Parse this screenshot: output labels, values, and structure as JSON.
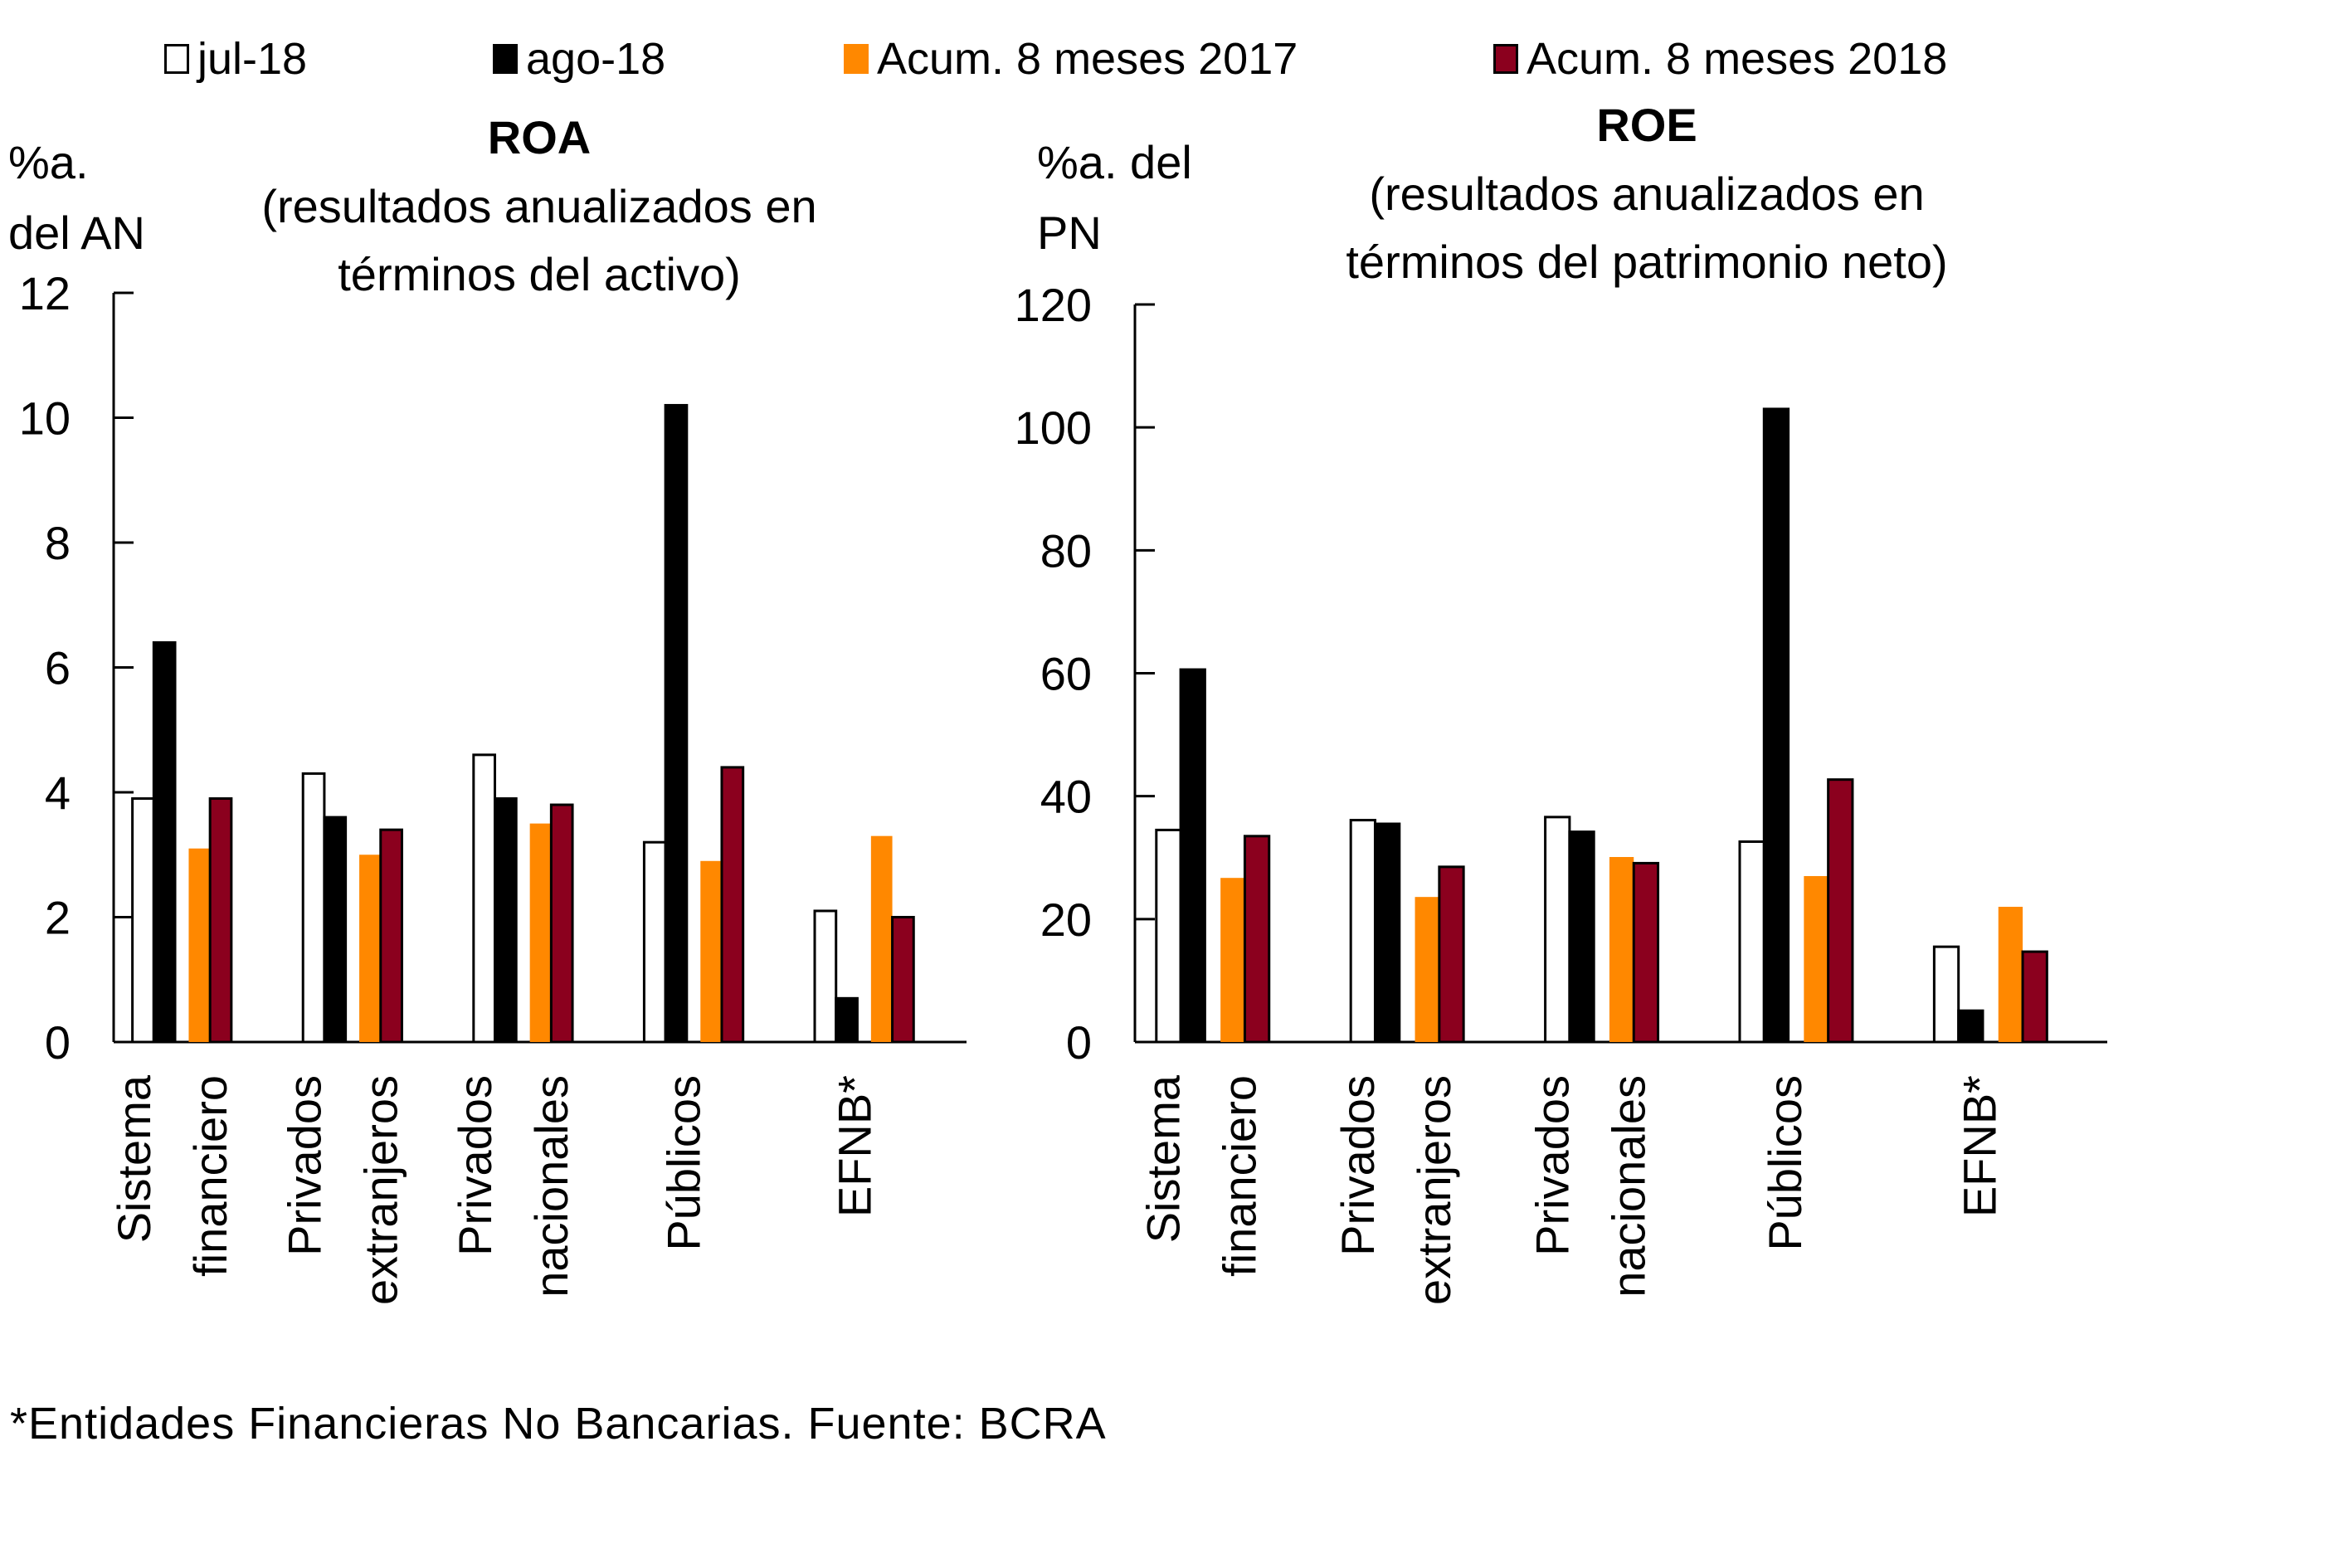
{
  "legend": [
    {
      "label": "jul-18",
      "color": "#ffffff",
      "border": "#000000"
    },
    {
      "label": "ago-18",
      "color": "#000000",
      "border": "#000000"
    },
    {
      "label": "Acum. 8 meses 2017",
      "color": "#ff8800",
      "border": "#ff8800"
    },
    {
      "label": "Acum. 8 meses 2018",
      "color": "#8b001e",
      "border": "#000000"
    }
  ],
  "footnote": "*Entidades Financieras No Bancarias. Fuente: BCRA",
  "chart_data": [
    {
      "type": "bar",
      "title": "ROA",
      "subtitle_lines": [
        "(resultados anualizados en",
        "términos del activo)"
      ],
      "ylabel_lines": [
        "%a.",
        "del AN"
      ],
      "ylim": [
        0,
        12
      ],
      "yticks": [
        0,
        2,
        4,
        6,
        8,
        10,
        12
      ],
      "categories": [
        [
          "Sistema",
          "financiero"
        ],
        [
          "Privados",
          "extranjeros"
        ],
        [
          "Privados",
          "nacionales"
        ],
        [
          "Públicos"
        ],
        [
          "EFNB*"
        ]
      ],
      "series": [
        {
          "name": "jul-18",
          "values": [
            3.9,
            4.3,
            4.6,
            3.2,
            2.1
          ]
        },
        {
          "name": "ago-18",
          "values": [
            6.4,
            3.6,
            3.9,
            10.2,
            0.7
          ]
        },
        {
          "name": "Acum. 8 meses 2017",
          "values": [
            3.1,
            3.0,
            3.5,
            2.9,
            3.3
          ]
        },
        {
          "name": "Acum. 8 meses 2018",
          "values": [
            3.9,
            3.4,
            3.8,
            4.4,
            2.0
          ]
        }
      ],
      "grid": false
    },
    {
      "type": "bar",
      "title": "ROE",
      "subtitle_lines": [
        "(resultados anualizados en",
        "términos del patrimonio neto)"
      ],
      "ylabel_lines": [
        "%a. del",
        "PN"
      ],
      "ylim": [
        0,
        120
      ],
      "yticks": [
        0,
        20,
        40,
        60,
        80,
        100,
        120
      ],
      "categories": [
        [
          "Sistema",
          "financiero"
        ],
        [
          "Privados",
          "extranjeros"
        ],
        [
          "Privados",
          "nacionales"
        ],
        [
          "Públicos"
        ],
        [
          "EFNB*"
        ]
      ],
      "series": [
        {
          "name": "jul-18",
          "values": [
            34.5,
            36.1,
            36.6,
            32.6,
            15.5
          ]
        },
        {
          "name": "ago-18",
          "values": [
            60.6,
            35.5,
            34.2,
            103.0,
            5.1
          ]
        },
        {
          "name": "Acum. 8 meses 2017",
          "values": [
            26.7,
            23.6,
            30.1,
            27.0,
            22.0
          ]
        },
        {
          "name": "Acum. 8 meses 2018",
          "values": [
            33.5,
            28.5,
            29.1,
            42.7,
            14.7
          ]
        }
      ],
      "grid": false
    }
  ]
}
